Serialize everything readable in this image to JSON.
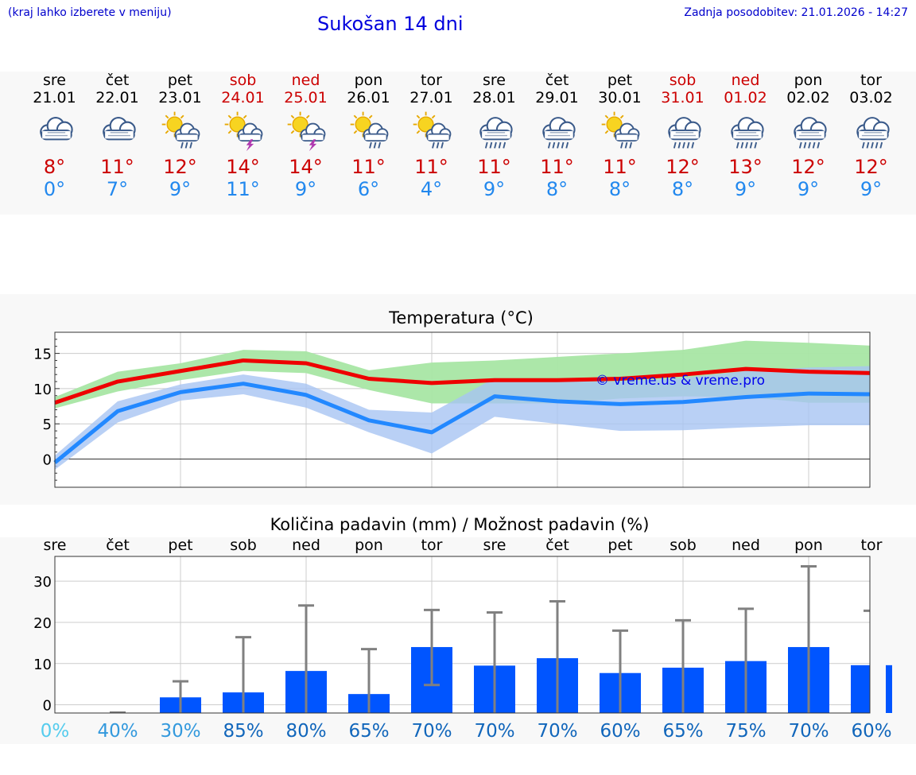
{
  "header": {
    "menu_hint": "(kraj lahko izberete v meniju)",
    "title": "Sukošan 14 dni",
    "updated": "Zadnja posodobitev: 21.01.2026 - 14:27"
  },
  "days": [
    {
      "name": "sre",
      "date": "21.01",
      "weekend": false,
      "icon": "cloudy-icon",
      "tmax": "8°",
      "tmin": "0°"
    },
    {
      "name": "čet",
      "date": "22.01",
      "weekend": false,
      "icon": "cloudy-icon",
      "tmax": "11°",
      "tmin": "7°"
    },
    {
      "name": "pet",
      "date": "23.01",
      "weekend": false,
      "icon": "sun-cloud-rain-icon",
      "tmax": "12°",
      "tmin": "9°"
    },
    {
      "name": "sob",
      "date": "24.01",
      "weekend": true,
      "icon": "sun-cloud-thunder-icon",
      "tmax": "14°",
      "tmin": "11°"
    },
    {
      "name": "ned",
      "date": "25.01",
      "weekend": true,
      "icon": "sun-cloud-thunder-icon",
      "tmax": "14°",
      "tmin": "9°"
    },
    {
      "name": "pon",
      "date": "26.01",
      "weekend": false,
      "icon": "sun-cloud-rain-icon",
      "tmax": "11°",
      "tmin": "6°"
    },
    {
      "name": "tor",
      "date": "27.01",
      "weekend": false,
      "icon": "sun-cloud-rain-icon",
      "tmax": "11°",
      "tmin": "4°"
    },
    {
      "name": "sre",
      "date": "28.01",
      "weekend": false,
      "icon": "cloud-rain-icon",
      "tmax": "11°",
      "tmin": "9°"
    },
    {
      "name": "čet",
      "date": "29.01",
      "weekend": false,
      "icon": "cloud-rain-icon",
      "tmax": "11°",
      "tmin": "8°"
    },
    {
      "name": "pet",
      "date": "30.01",
      "weekend": false,
      "icon": "sun-cloud-rain-icon",
      "tmax": "11°",
      "tmin": "8°"
    },
    {
      "name": "sob",
      "date": "31.01",
      "weekend": true,
      "icon": "cloud-rain-icon",
      "tmax": "12°",
      "tmin": "8°"
    },
    {
      "name": "ned",
      "date": "01.02",
      "weekend": true,
      "icon": "cloud-rain-icon",
      "tmax": "13°",
      "tmin": "9°"
    },
    {
      "name": "pon",
      "date": "02.02",
      "weekend": false,
      "icon": "cloud-rain-icon",
      "tmax": "12°",
      "tmin": "9°"
    },
    {
      "name": "tor",
      "date": "03.02",
      "weekend": false,
      "icon": "cloud-rain-icon",
      "tmax": "12°",
      "tmin": "9°"
    }
  ],
  "colors": {
    "max_line": "#ee0000",
    "min_line": "#2288ff",
    "max_band": "#a8e6a4",
    "min_band": "#a8c4f2",
    "overlap_band": "#7fc0b6",
    "bar": "#0055ff",
    "error_bar": "#808080",
    "watermark": "#0000ee",
    "prob_light": "#55ccee",
    "prob_mid": "#3399dd",
    "prob_dark": "#1166bb"
  },
  "chart_data": [
    {
      "type": "line",
      "title": "Temperatura (°C)",
      "xlabel": "",
      "ylabel": "",
      "ylim": [
        -4,
        18
      ],
      "yticks": [
        0,
        5,
        10,
        15
      ],
      "x": [
        0,
        1,
        2,
        3,
        4,
        5,
        6,
        7,
        8,
        9,
        10,
        11,
        12,
        13
      ],
      "watermark": "© vreme.us & vreme.pro",
      "series": [
        {
          "name": "max",
          "values": [
            8,
            11,
            12.5,
            14,
            13.6,
            11.4,
            10.8,
            11.2,
            11.2,
            11.4,
            12,
            12.8,
            12.4,
            12.2
          ],
          "band_low": [
            7.2,
            9.6,
            11.2,
            12.5,
            12.2,
            9.8,
            7.9,
            7.9,
            7.9,
            8.6,
            8.9,
            8.8,
            8.0,
            8.0
          ],
          "band_high": [
            8.8,
            12.4,
            13.6,
            15.5,
            15.3,
            12.6,
            13.7,
            14.0,
            14.5,
            15.0,
            15.5,
            16.8,
            16.5,
            16.1
          ]
        },
        {
          "name": "min",
          "values": [
            -0.5,
            6.8,
            9.5,
            10.7,
            9.1,
            5.5,
            3.8,
            8.9,
            8.2,
            7.8,
            8.1,
            8.8,
            9.3,
            9.2
          ],
          "band_low": [
            -1.5,
            5.2,
            8.3,
            9.2,
            7.3,
            3.8,
            0.8,
            6.0,
            5.0,
            4.0,
            4.1,
            4.5,
            4.8,
            4.8
          ],
          "band_high": [
            0.5,
            8.2,
            10.6,
            12.0,
            10.7,
            7.0,
            6.6,
            11.5,
            11.0,
            11.0,
            11.5,
            12.5,
            13.0,
            13.2
          ]
        }
      ]
    },
    {
      "type": "bar",
      "title": "Količina padavin (mm) / Možnost padavin (%)",
      "categories": [
        "sre",
        "čet",
        "pet",
        "sob",
        "ned",
        "pon",
        "tor",
        "sre",
        "čet",
        "pet",
        "sob",
        "ned",
        "pon",
        "tor"
      ],
      "values": [
        0,
        0,
        1.8,
        3,
        8.2,
        2.6,
        14,
        9.5,
        11.3,
        7.7,
        9,
        10.6,
        14,
        9.6
      ],
      "error_low": [
        0,
        0,
        0,
        0,
        0,
        0,
        4.8,
        0,
        0,
        0,
        0,
        0,
        0,
        0
      ],
      "error_high": [
        0,
        0,
        5.7,
        16.4,
        24.1,
        13.5,
        23,
        22.4,
        25.1,
        18,
        20.5,
        23.3,
        33.6,
        22.8
      ],
      "probabilities": [
        "0%",
        "40%",
        "30%",
        "85%",
        "80%",
        "65%",
        "70%",
        "70%",
        "70%",
        "60%",
        "65%",
        "75%",
        "70%",
        "60%"
      ],
      "ylim": [
        -2,
        36
      ],
      "yticks": [
        0,
        10,
        20,
        30
      ],
      "ylabel": "",
      "xlabel": ""
    }
  ]
}
